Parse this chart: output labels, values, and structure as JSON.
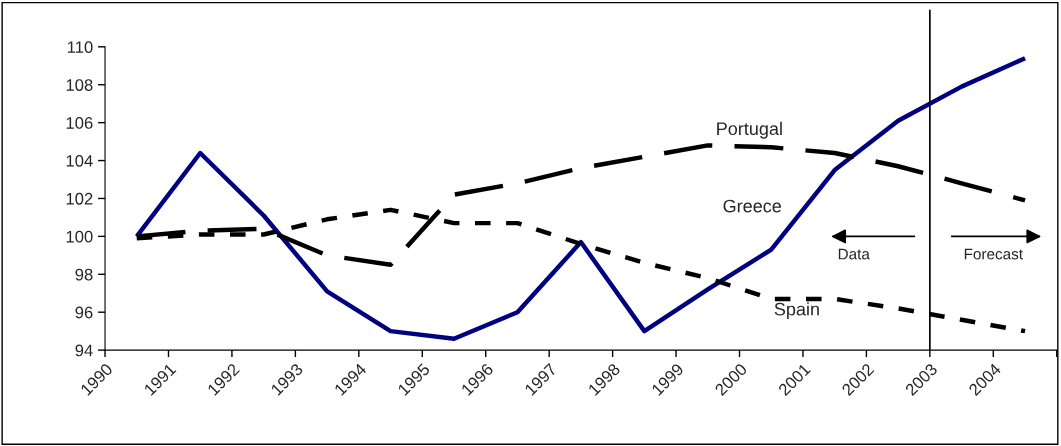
{
  "chart_data": {
    "type": "line",
    "x": [
      1990.5,
      1991.5,
      1992.5,
      1993.5,
      1994.5,
      1995.5,
      1996.5,
      1997.5,
      1998.5,
      1999.5,
      2000.5,
      2001.5,
      2002.5,
      2003.5,
      2004.5
    ],
    "series": [
      {
        "name": "Greece",
        "color": "#000080",
        "line_style": "solid",
        "values": [
          100.0,
          104.4,
          101.1,
          97.1,
          95.0,
          94.6,
          96.0,
          99.7,
          95.0,
          97.2,
          99.3,
          103.5,
          106.1,
          107.9,
          109.4
        ]
      },
      {
        "name": "Portugal",
        "color": "#000000",
        "line_style": "dashed",
        "values": [
          100.0,
          100.3,
          100.4,
          99.0,
          98.5,
          102.2,
          102.8,
          103.6,
          104.2,
          104.8,
          104.7,
          104.4,
          103.7,
          102.8,
          101.9
        ]
      },
      {
        "name": "Spain",
        "color": "#000000",
        "line_style": "dotted",
        "values": [
          99.9,
          100.1,
          100.1,
          100.9,
          101.4,
          100.7,
          100.7,
          99.6,
          98.6,
          97.8,
          96.7,
          96.7,
          96.2,
          95.6,
          95.0
        ]
      }
    ],
    "xlim": [
      1990,
      2005
    ],
    "xticks": [
      1990,
      1991,
      1992,
      1993,
      1994,
      1995,
      1996,
      1997,
      1998,
      1999,
      2000,
      2001,
      2002,
      2003,
      2004,
      {
        "value": 2005,
        "label": null
      }
    ],
    "ylim": [
      94,
      110
    ],
    "yticks": [
      94,
      96,
      98,
      100,
      102,
      104,
      106,
      108,
      110
    ],
    "ref_lines": [
      {
        "axis": "x",
        "value": 2003,
        "color": "#000000",
        "line_style": "solid"
      }
    ],
    "annotations": [
      "Data",
      "Forecast"
    ],
    "grid": false,
    "legend": false,
    "marker": "none"
  }
}
